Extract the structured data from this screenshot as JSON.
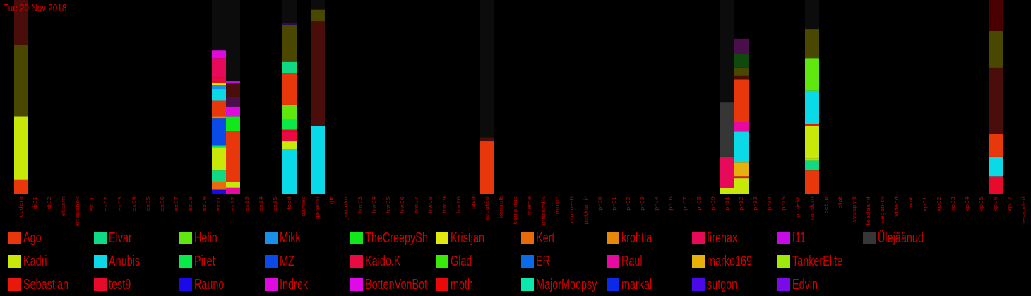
{
  "date_label": "Tue 20 Nov 2018",
  "chart_data": {
    "type": "bar",
    "stacked": true,
    "title": "Tue 20 Nov 2018",
    "ylim": [
      0,
      100
    ],
    "grid": false,
    "legend_placement": "bottom",
    "categories": [
      "codera",
      "dj01",
      "dj02",
      "eksam",
      "ettepanek",
      "ex01",
      "ex02",
      "ex03",
      "ex04",
      "ex05",
      "ex06",
      "ex07",
      "ex08",
      "ex09",
      "ex11",
      "ex12",
      "ex13",
      "ex14",
      "ex15",
      "food",
      "games",
      "general",
      "git",
      "gomoku",
      "hw03",
      "hw04",
      "hw05",
      "hw06",
      "hw07",
      "hw08",
      "hw09",
      "hw10",
      "java",
      "kaugtöö",
      "konsult",
      "korraldus",
      "meme",
      "mittemiik",
      "music",
      "oluline-ti",
      "pakkumi-",
      "pr00",
      "pr01",
      "pr02",
      "pr03",
      "pr04",
      "pr06",
      "pr07",
      "pr08",
      "pr09",
      "pr11",
      "pr12",
      "pr13",
      "pr14",
      "pr15",
      "projekt",
      "random",
      "setup",
      "stat",
      "syvapy-t",
      "teadaand",
      "vegan-tk",
      "videod",
      "wat",
      "xp01",
      "xp02",
      "xp03",
      "xp04",
      "xp05",
      "xp06",
      "xp07",
      "ülesanded"
    ],
    "background_fill": {
      "color": "#0c0c0c",
      "total": {
        "ex11": 100,
        "ex12": 100,
        "food": 100,
        "general": 100,
        "kaugtöö": 100,
        "pr11": 100,
        "random": 100
      }
    },
    "series": [
      {
        "name": "Ago",
        "color": "#e8370a",
        "values": {
          "codera": 7,
          "ex11": 8,
          "ex12": 26,
          "food": 16,
          "kaugtöö": 27,
          "pr12": 22,
          "random": 12,
          "xp06": 12
        }
      },
      {
        "name": "Elvar",
        "color": "#10d985",
        "values": {
          "ex11": 6,
          "food": 6,
          "random": 5
        }
      },
      {
        "name": "Helin",
        "color": "#5fe80f",
        "values": {
          "food": 8,
          "random": 17
        }
      },
      {
        "name": "Mikk",
        "color": "#1a8fe8",
        "values": {
          "ex11": 2
        }
      },
      {
        "name": "TheCreepySh",
        "color": "#10e81a",
        "values": {
          "ex12": 8
        }
      },
      {
        "name": "Kristjan",
        "color": "#e0e80f",
        "values": {
          "ex11": 1
        }
      },
      {
        "name": "Kert",
        "color": "#e86a0a",
        "values": {
          "ex11": 4,
          "random": 3
        }
      },
      {
        "name": "krohtla",
        "color": "#e8880a",
        "values": {
          "ex11": 1
        }
      },
      {
        "name": "firehax",
        "color": "#e80a5a",
        "values": {
          "ex11": 10,
          "pr11": 16
        }
      },
      {
        "name": "f11",
        "color": "#c80ae8",
        "values": {
          "ex12": 1
        }
      },
      {
        "name": "Ülejäänud",
        "color": "#363636",
        "values": {
          "pr11": 28
        }
      },
      {
        "name": "Kadri",
        "color": "#c8e80a",
        "values": {
          "codera": 33,
          "ex11": 12,
          "ex12": 3,
          "food": 4,
          "pr11": 3,
          "pr12": 8,
          "random": 17
        }
      },
      {
        "name": "Anubis",
        "color": "#0ad9e8",
        "values": {
          "ex11": 6,
          "food": 23,
          "general": 35,
          "pr12": 16,
          "random": 17,
          "xp06": 10
        }
      },
      {
        "name": "Piret",
        "color": "#0ae84a",
        "values": {
          "ex11": 1,
          "food": 5
        }
      },
      {
        "name": "MZ",
        "color": "#0a4ae8",
        "values": {
          "ex11": 14
        }
      },
      {
        "name": "Kaido.K",
        "color": "#e80a40",
        "values": {
          "ex11": 2,
          "food": 5,
          "pr12": 1
        }
      },
      {
        "name": "Glad",
        "color": "#3ae80a",
        "values": {}
      },
      {
        "name": "ER",
        "color": "#0a6ae8",
        "values": {}
      },
      {
        "name": "Raul",
        "color": "#e80aa0",
        "values": {
          "ex12": 3,
          "pr12": 5
        }
      },
      {
        "name": "marko169",
        "color": "#e8b00a",
        "values": {
          "pr12": 7
        }
      },
      {
        "name": "TankerElite",
        "color": "#a0e80a",
        "values": {
          "random": 1
        }
      },
      {
        "name": "Sebastian",
        "color": "#e8180a",
        "values": {
          "ex11": 1,
          "random": 1
        }
      },
      {
        "name": "test9",
        "color": "#e80a2a",
        "values": {
          "food": 1,
          "xp06": 9
        }
      },
      {
        "name": "Rauno",
        "color": "#1a0ae8",
        "values": {
          "ex11": 2
        }
      },
      {
        "name": "Indrek",
        "color": "#e00ae0",
        "values": {
          "ex11": 4,
          "ex12": 5
        }
      },
      {
        "name": "BottenVonBot",
        "color": "#e00ae8",
        "values": {}
      },
      {
        "name": "moth",
        "color": "#e80a0a",
        "values": {}
      },
      {
        "name": "MajorMoopsy",
        "color": "#0ae8b0",
        "values": {}
      },
      {
        "name": "markal",
        "color": "#0a2ae8",
        "values": {}
      },
      {
        "name": "sutgon",
        "color": "#4a0ae8",
        "values": {}
      },
      {
        "name": "Edvin",
        "color": "#7a0ae8",
        "values": {}
      }
    ],
    "muted_series": [
      {
        "color": "#4a4800",
        "values": {
          "codera": 37,
          "food": 19,
          "general": 6,
          "pr12": 4,
          "random": 15,
          "xp06": 19
        }
      },
      {
        "color": "#4a0e0a",
        "values": {
          "codera": 23,
          "ex12": 7,
          "general": 54,
          "kaugtöö": 2,
          "pr12": 2,
          "xp06": 34
        }
      },
      {
        "color": "#4a0e4a",
        "values": {
          "ex12": 5,
          "pr12": 8
        }
      },
      {
        "color": "#0e4a0e",
        "values": {
          "pr12": 7
        }
      },
      {
        "color": "#2a0e4a",
        "values": {
          "food": 1
        }
      },
      {
        "color": "#4a0000",
        "values": {
          "xp06": 18
        }
      }
    ],
    "legend": [
      "Ago",
      "Elvar",
      "Helin",
      "Mikk",
      "TheCreepySh",
      "Kristjan",
      "Kert",
      "krohtla",
      "firehax",
      "f11",
      "Ülejäänud",
      "Kadri",
      "Anubis",
      "Piret",
      "MZ",
      "Kaido.K",
      "Glad",
      "ER",
      "Raul",
      "marko169",
      "TankerElite",
      "Sebastian",
      "test9",
      "Rauno",
      "Indrek",
      "BottenVonBot",
      "moth",
      "MajorMoopsy",
      "markal",
      "sutgon",
      "Edvin"
    ]
  }
}
